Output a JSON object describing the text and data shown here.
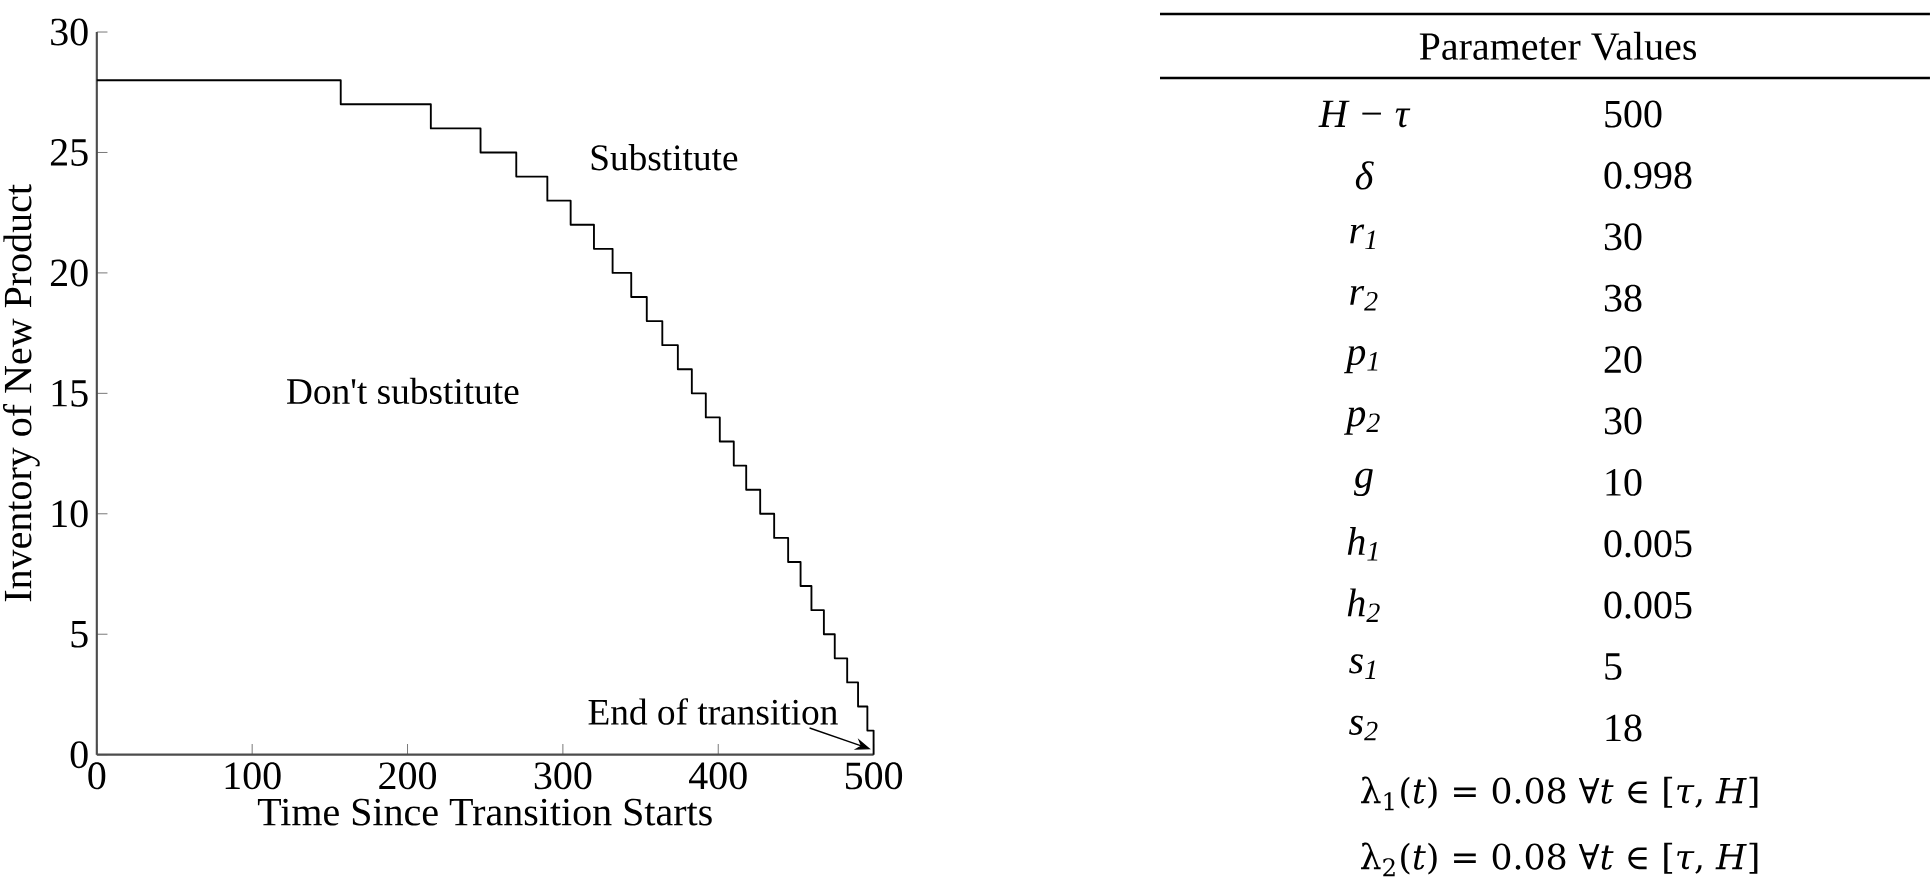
{
  "chart_data": [
    {
      "type": "step",
      "xlabel": "Time Since Transition Starts",
      "ylabel": "Inventory of New Product",
      "x": [
        0,
        157,
        215,
        247,
        270,
        290,
        305,
        320,
        332,
        344,
        354,
        364,
        374,
        383,
        392,
        401,
        410,
        418,
        427,
        436,
        445,
        453,
        460,
        468,
        475,
        483,
        490,
        496,
        500
      ],
      "values": [
        28,
        27,
        26,
        25,
        24,
        23,
        22,
        21,
        20,
        19,
        18,
        17,
        16,
        15,
        14,
        13,
        12,
        11,
        10,
        9,
        8,
        7,
        6,
        5,
        4,
        3,
        2,
        1,
        0
      ],
      "color": "#000000",
      "xlim": [
        0,
        500
      ],
      "xticks": [
        0,
        100,
        200,
        300,
        400,
        500
      ],
      "ylim": [
        0,
        30
      ],
      "yticks": [
        0,
        5,
        10,
        15,
        20,
        25,
        30
      ],
      "annotations": [
        "Substitute",
        "Don't substitute",
        {
          "text": "End of transition",
          "x": 500,
          "y": 0
        }
      ]
    },
    {
      "type": "other",
      "title": "Parameter Values",
      "categories": [
        "H − τ",
        "δ",
        "r$_{1}$",
        "r$_{2}$",
        "p$_{1}$",
        "p$_{2}$",
        "g",
        "h$_{1}$",
        "h$_{2}$",
        "s$_{1}$",
        "s$_{2}$"
      ],
      "values": [
        500,
        0.998,
        30,
        38,
        20,
        30,
        10,
        0.005,
        0.005,
        5,
        18
      ],
      "data_labels": true,
      "annotations": [
        "λ$_{1}$(*t*) = 0.08  ∀*t* ∈ [*τ*, *H*]",
        "λ$_{2}$(*t*) = 0.08  ∀*t* ∈ [*τ*, *H*]"
      ]
    }
  ]
}
